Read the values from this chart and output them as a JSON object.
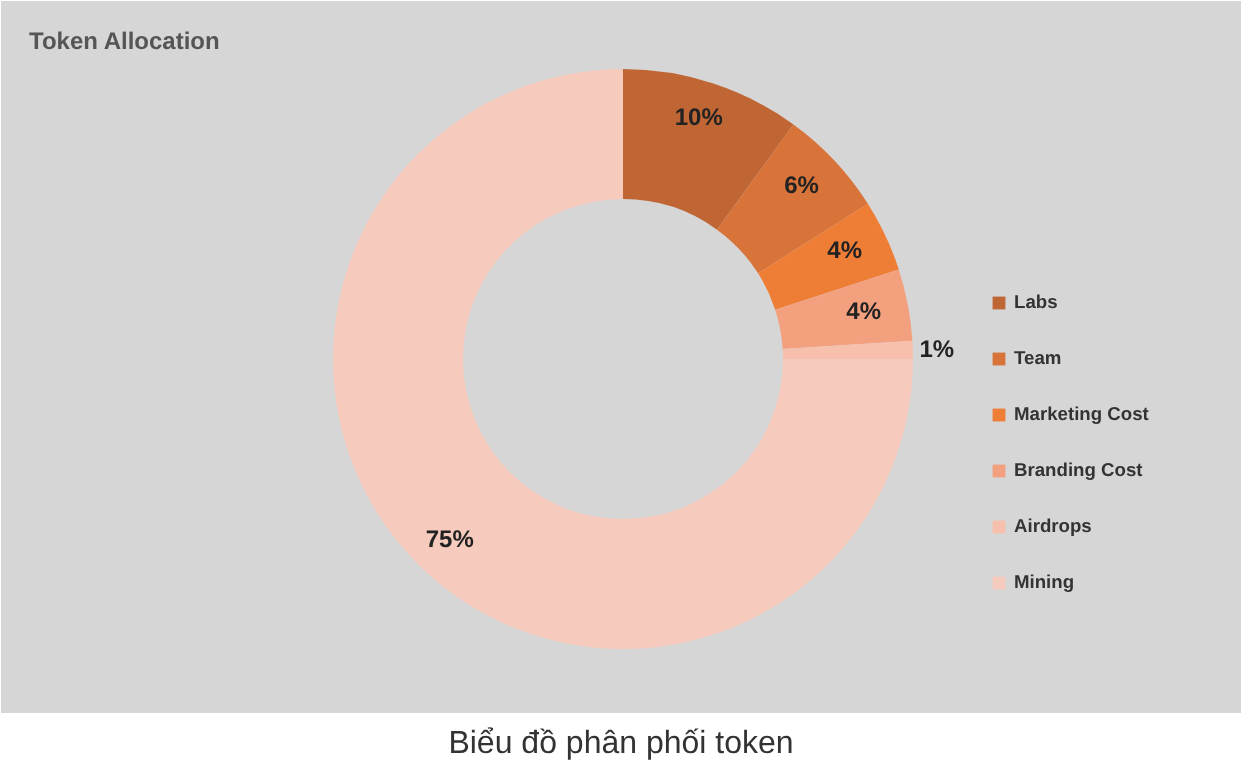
{
  "chart_data": {
    "type": "donut",
    "title": "Token Allocation",
    "categories": [
      "Labs",
      "Team",
      "Marketing Cost",
      "Branding Cost",
      "Airdrops",
      "Mining"
    ],
    "values": [
      10,
      6,
      4,
      4,
      1,
      75
    ],
    "colors": [
      "#bf6634",
      "#d8733a",
      "#ee7d36",
      "#f3a07f",
      "#f6c0ad",
      "#f6cbbd"
    ],
    "value_labels": [
      "10%",
      "6%",
      "4%",
      "4%",
      "1%",
      "75%"
    ],
    "legend": "right",
    "annotations": [
      "Biểu đồ phân phối token"
    ]
  }
}
